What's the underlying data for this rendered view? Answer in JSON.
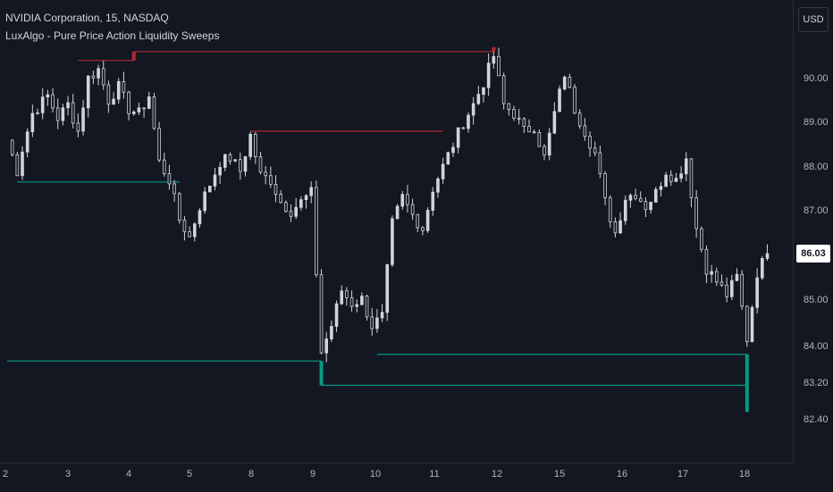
{
  "legend": {
    "symbol": "NVIDIA Corporation, 15, NASDAQ",
    "indicator": "LuxAlgo - Pure Price Action Liquidity Sweeps"
  },
  "currency_button": "USD",
  "price_axis": {
    "labels": [
      "90.00",
      "89.00",
      "88.00",
      "87.00",
      "85.00",
      "84.00",
      "83.20",
      "82.40"
    ],
    "last_price": "86.03"
  },
  "time_axis": {
    "labels": [
      "2",
      "3",
      "4",
      "5",
      "8",
      "9",
      "10",
      "11",
      "12",
      "15",
      "16",
      "17",
      "18"
    ]
  },
  "colors": {
    "background": "#131722",
    "candles": "#d1d4dc",
    "bearish_sweep": "#b22833",
    "bullish_sweep": "#089981",
    "last_price_tag": "#ffffff"
  },
  "chart_data": {
    "type": "candlestick",
    "price_range": [
      82.2,
      91.0
    ],
    "close_path": [
      [
        "0",
        88.6
      ],
      [
        "2",
        87.9
      ],
      [
        "3",
        88.4
      ],
      [
        "5",
        89.2
      ],
      [
        "8",
        89.6
      ],
      [
        "10",
        89.1
      ],
      [
        "12",
        89.4
      ],
      [
        "14",
        88.8
      ],
      [
        "16",
        90.0
      ],
      [
        "18",
        90.2
      ],
      [
        "20",
        89.5
      ],
      [
        "22",
        89.8
      ],
      [
        "24",
        89.3
      ],
      [
        "26",
        89.2
      ],
      [
        "28",
        89.6
      ],
      [
        "30",
        88.1
      ],
      [
        "32",
        87.7
      ],
      [
        "34",
        86.8
      ],
      [
        "36",
        86.4
      ],
      [
        "38",
        87.1
      ],
      [
        "40",
        87.6
      ],
      [
        "42",
        88.1
      ],
      [
        "44",
        88.2
      ],
      [
        "46",
        87.9
      ],
      [
        "48",
        88.7
      ],
      [
        "50",
        87.8
      ],
      [
        "52",
        87.7
      ],
      [
        "54",
        87.2
      ],
      [
        "56",
        87.0
      ],
      [
        "58",
        87.2
      ],
      [
        "60",
        87.4
      ],
      [
        "62",
        83.8
      ],
      [
        "64",
        84.4
      ],
      [
        "66",
        85.2
      ],
      [
        "68",
        84.9
      ],
      [
        "70",
        85.0
      ],
      [
        "72",
        84.4
      ],
      [
        "74",
        84.6
      ],
      [
        "76",
        86.7
      ],
      [
        "78",
        87.3
      ],
      [
        "80",
        86.9
      ],
      [
        "82",
        86.6
      ],
      [
        "84",
        87.5
      ],
      [
        "86",
        88.0
      ],
      [
        "88",
        88.5
      ],
      [
        "90",
        89.0
      ],
      [
        "92",
        89.4
      ],
      [
        "94",
        89.9
      ],
      [
        "96",
        90.5
      ],
      [
        "98",
        89.4
      ],
      [
        "100",
        89.2
      ],
      [
        "102",
        88.8
      ],
      [
        "104",
        88.9
      ],
      [
        "106",
        88.2
      ],
      [
        "108",
        89.2
      ],
      [
        "110",
        90.1
      ],
      [
        "112",
        89.3
      ],
      [
        "114",
        88.8
      ],
      [
        "116",
        88.3
      ],
      [
        "118",
        87.2
      ],
      [
        "120",
        86.5
      ],
      [
        "122",
        87.3
      ],
      [
        "124",
        87.4
      ],
      [
        "126",
        87.1
      ],
      [
        "128",
        87.4
      ],
      [
        "130",
        87.9
      ],
      [
        "132",
        87.7
      ],
      [
        "134",
        88.2
      ],
      [
        "136",
        86.6
      ],
      [
        "138",
        85.7
      ],
      [
        "140",
        85.4
      ],
      [
        "142",
        85.1
      ],
      [
        "144",
        85.5
      ],
      [
        "146",
        84.1
      ],
      [
        "148",
        85.6
      ],
      [
        "150",
        86.03
      ]
    ],
    "sweep_levels": [
      {
        "kind": "bearish",
        "price": 90.4,
        "from": 14,
        "to": 25,
        "sweep_at": 25
      },
      {
        "kind": "bearish",
        "price": 90.6,
        "from": 25,
        "to": 96,
        "sweep_at": 96
      },
      {
        "kind": "bearish",
        "price": 88.8,
        "from": 48,
        "to": 86
      },
      {
        "kind": "bullish",
        "price": 87.65,
        "from": 2,
        "to": 34
      },
      {
        "kind": "bullish",
        "price": 83.6,
        "from": 0,
        "to": 62,
        "sweep_at": 62
      },
      {
        "kind": "bullish",
        "price": 83.05,
        "from": 62,
        "to": 146,
        "sweep_at": 146
      },
      {
        "kind": "bullish",
        "price": 83.75,
        "from": 73,
        "to": 146
      }
    ],
    "wick_tails": [
      {
        "kind": "bearish",
        "at": 25,
        "from": 90.4,
        "to": 90.6
      },
      {
        "kind": "bearish",
        "at": 96,
        "from": 90.6,
        "to": 90.7
      },
      {
        "kind": "bullish",
        "at": 62,
        "from": 83.6,
        "to": 83.05
      },
      {
        "kind": "bullish",
        "at": 146,
        "from": 83.75,
        "to": 82.45
      }
    ]
  }
}
